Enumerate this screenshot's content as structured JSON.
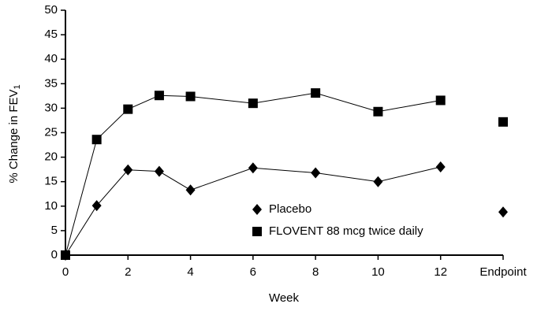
{
  "chart_data": {
    "type": "line",
    "xlabel": "Week",
    "ylabel": "% Change in FEV",
    "ylabel_subscript": "1",
    "x": [
      0,
      1,
      2,
      3,
      4,
      6,
      8,
      10,
      12
    ],
    "xlim": [
      0,
      14
    ],
    "xticks": [
      0,
      2,
      4,
      6,
      8,
      10,
      12,
      {
        "value": 14,
        "label": "Endpoint"
      }
    ],
    "ylim": [
      0,
      50
    ],
    "yticks": [
      0,
      5,
      10,
      15,
      20,
      25,
      30,
      35,
      40,
      45,
      50
    ],
    "series": [
      {
        "name": "Placebo",
        "color": "#000000",
        "marker": "diamond",
        "values": [
          0,
          10.1,
          17.4,
          17.1,
          13.3,
          17.8,
          16.8,
          15.0,
          18.0
        ],
        "endpoint": 8.8
      },
      {
        "name": "FLOVENT 88 mcg twice daily",
        "color": "#000000",
        "marker": "square",
        "values": [
          0,
          23.6,
          29.8,
          32.6,
          32.4,
          31.0,
          33.1,
          29.3,
          31.6
        ],
        "endpoint": 27.2
      }
    ]
  }
}
